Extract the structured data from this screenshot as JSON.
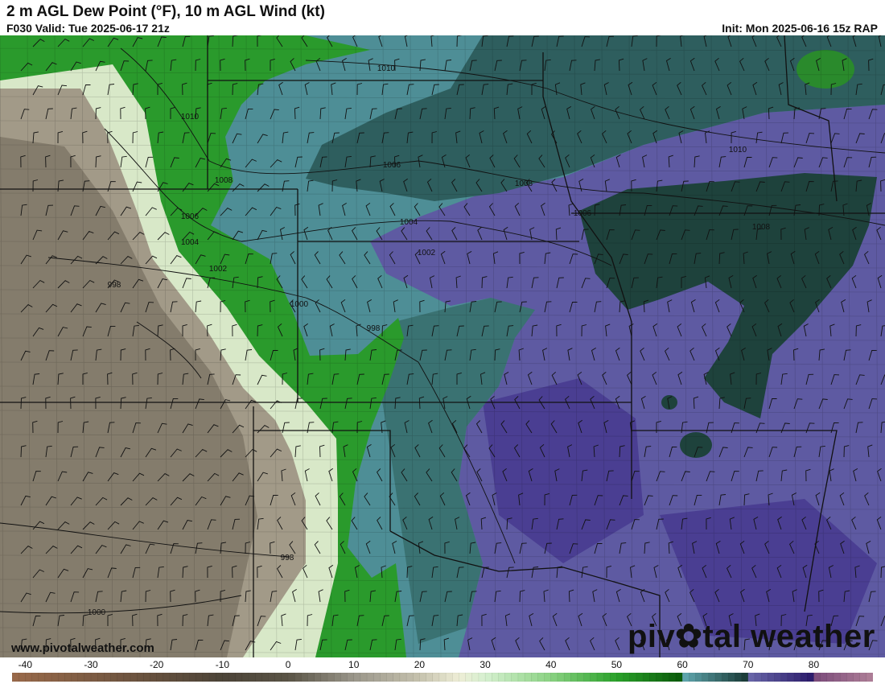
{
  "header": {
    "title": "2 m AGL Dew Point (°F), 10 m AGL Wind (kt)",
    "valid": "F030 Valid: Tue 2025-06-17 21z",
    "init": "Init: Mon 2025-06-16 15z RAP"
  },
  "footer": {
    "website": "www.pivotalweather.com",
    "brand_pre": "piv",
    "brand_post": "tal weather",
    "brand_icon": "gear-icon"
  },
  "colorbar": {
    "unit": "°F",
    "range": [
      -42,
      89
    ],
    "labels": [
      "-40",
      "-30",
      "-20",
      "-10",
      "0",
      "10",
      "20",
      "30",
      "40",
      "50",
      "60",
      "70",
      "80"
    ],
    "stops": [
      {
        "value": -42,
        "color": "#9a6a4a"
      },
      {
        "value": -10,
        "color": "#4c4438"
      },
      {
        "value": 0,
        "color": "#5a5446"
      },
      {
        "value": 10,
        "color": "#9a968a"
      },
      {
        "value": 20,
        "color": "#c6c2ae"
      },
      {
        "value": 26,
        "color": "#eeeed6"
      },
      {
        "value": 30,
        "color": "#d6f0d0"
      },
      {
        "value": 40,
        "color": "#8ad282"
      },
      {
        "value": 50,
        "color": "#2aa22a"
      },
      {
        "value": 59.9,
        "color": "#0a5a0a"
      },
      {
        "value": 60,
        "color": "#62aab2"
      },
      {
        "value": 69.9,
        "color": "#183834"
      },
      {
        "value": 70,
        "color": "#6a68aa"
      },
      {
        "value": 79.9,
        "color": "#2a1a6a"
      },
      {
        "value": 80,
        "color": "#7a4a7a"
      },
      {
        "value": 89,
        "color": "#b08098"
      }
    ]
  },
  "isobars": [
    {
      "label": "1010"
    },
    {
      "label": "1010"
    },
    {
      "label": "1008"
    },
    {
      "label": "1006"
    },
    {
      "label": "1004"
    },
    {
      "label": "1002"
    },
    {
      "label": "998"
    },
    {
      "label": "1000"
    },
    {
      "label": "998"
    },
    {
      "label": "1006"
    },
    {
      "label": "1004"
    },
    {
      "label": "1002"
    },
    {
      "label": "1008"
    },
    {
      "label": "1006"
    },
    {
      "label": "1010"
    },
    {
      "label": "1008"
    },
    {
      "label": "998"
    },
    {
      "label": "1000"
    }
  ]
}
